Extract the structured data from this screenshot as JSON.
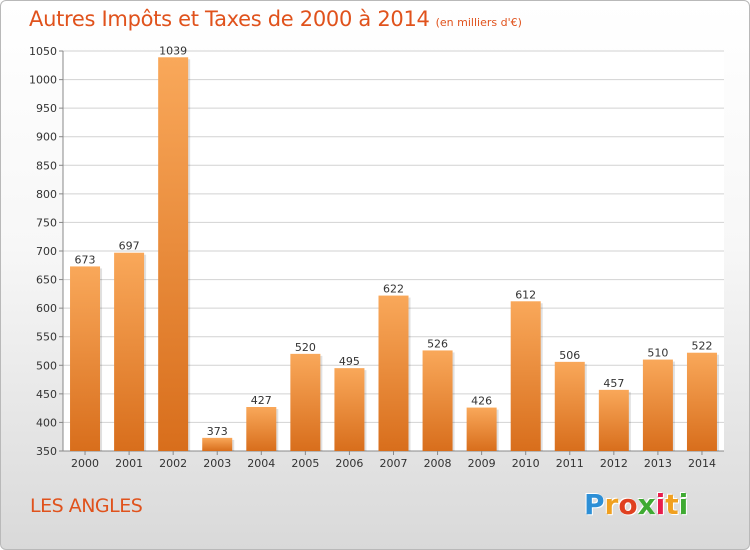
{
  "title": "Autres Impôts et Taxes de 2000 à 2014",
  "subtitle": "(en milliers d'€)",
  "commune": "LES ANGLES",
  "logo": {
    "p": "P",
    "r": "r",
    "o": "o",
    "x": "x",
    "i": "i",
    "t": "t",
    "i2": "i"
  },
  "colors": {
    "bar_top": "#f9a85a",
    "bar_bottom": "#d86e1c",
    "title": "#e0521c",
    "grid": "#d2d2d2"
  },
  "chart_data": {
    "type": "bar",
    "categories": [
      "2000",
      "2001",
      "2002",
      "2003",
      "2004",
      "2005",
      "2006",
      "2007",
      "2008",
      "2009",
      "2010",
      "2011",
      "2012",
      "2013",
      "2014"
    ],
    "values": [
      673,
      697,
      1039,
      373,
      427,
      520,
      495,
      622,
      526,
      426,
      612,
      506,
      457,
      510,
      522
    ],
    "ylim": [
      350,
      1050
    ],
    "yticks": [
      350,
      400,
      450,
      500,
      550,
      600,
      650,
      700,
      750,
      800,
      850,
      900,
      950,
      1000,
      1050
    ],
    "grid": true,
    "data_labels": true
  }
}
